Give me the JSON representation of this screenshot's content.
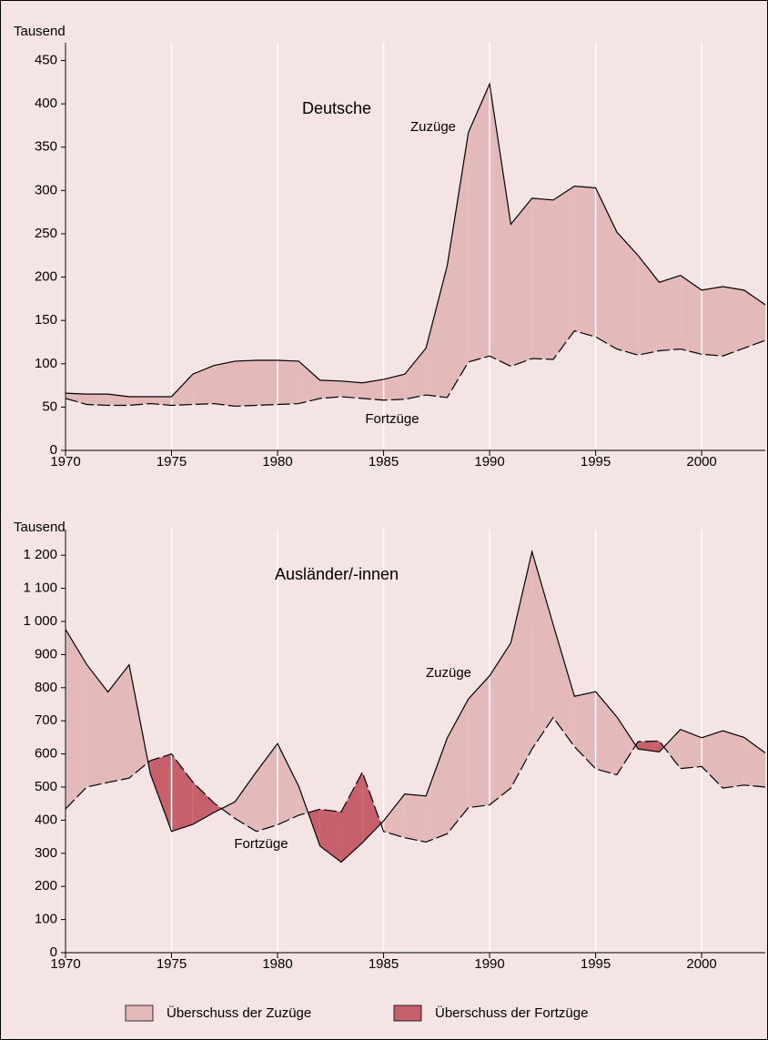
{
  "chart_data": [
    {
      "type": "area_diff",
      "title": "Deutsche",
      "ylabel": "Tausend",
      "x": [
        1970,
        1971,
        1972,
        1973,
        1974,
        1975,
        1976,
        1977,
        1978,
        1979,
        1980,
        1981,
        1982,
        1983,
        1984,
        1985,
        1986,
        1987,
        1988,
        1989,
        1990,
        1991,
        1992,
        1993,
        1994,
        1995,
        1996,
        1997,
        1998,
        1999,
        2000,
        2001,
        2002,
        2003
      ],
      "series": [
        {
          "name": "Zuzüge",
          "color": "#000000",
          "dash": false,
          "values": [
            66,
            65,
            65,
            62,
            62,
            62,
            88,
            98,
            103,
            104,
            104,
            103,
            81,
            80,
            78,
            82,
            88,
            118,
            213,
            367,
            423,
            261,
            291,
            289,
            305,
            303,
            252,
            225,
            194,
            202,
            185,
            189,
            185,
            168
          ]
        },
        {
          "name": "Fortzüge",
          "color": "#000000",
          "dash": true,
          "values": [
            60,
            53,
            52,
            52,
            54,
            52,
            53,
            54,
            51,
            52,
            53,
            54,
            60,
            62,
            60,
            58,
            59,
            64,
            61,
            102,
            109,
            97,
            106,
            105,
            138,
            131,
            117,
            110,
            115,
            117,
            111,
            109,
            118,
            127
          ]
        }
      ],
      "xlim": [
        1970,
        2003
      ],
      "xticks": [
        1970,
        1975,
        1980,
        1985,
        1990,
        1995,
        2000
      ],
      "ylim": [
        0,
        460
      ],
      "yticks": [
        0,
        50,
        100,
        150,
        200,
        250,
        300,
        350,
        400,
        450
      ],
      "grid": true
    },
    {
      "type": "area_diff",
      "title": "Ausländer/-innen",
      "ylabel": "Tausend",
      "x": [
        1970,
        1971,
        1972,
        1973,
        1974,
        1975,
        1976,
        1977,
        1978,
        1979,
        1980,
        1981,
        1982,
        1983,
        1984,
        1985,
        1986,
        1987,
        1988,
        1989,
        1990,
        1991,
        1992,
        1993,
        1994,
        1995,
        1996,
        1997,
        1998,
        1999,
        2000,
        2001,
        2002,
        2003
      ],
      "series": [
        {
          "name": "Zuzüge",
          "color": "#000000",
          "dash": false,
          "values": [
            976,
            870,
            787,
            869,
            540,
            366,
            387,
            423,
            456,
            546,
            631,
            502,
            322,
            273,
            332,
            398,
            479,
            473,
            648,
            766,
            836,
            935,
            1211,
            990,
            774,
            788,
            712,
            615,
            606,
            674,
            649,
            670,
            650,
            603
          ]
        },
        {
          "name": "Fortzüge",
          "color": "#000000",
          "dash": true,
          "values": [
            434,
            500,
            514,
            527,
            580,
            600,
            515,
            452,
            405,
            366,
            386,
            415,
            433,
            425,
            545,
            366,
            347,
            334,
            359,
            438,
            446,
            497,
            615,
            710,
            622,
            555,
            537,
            637,
            639,
            556,
            562,
            497,
            506,
            500
          ]
        }
      ],
      "xlim": [
        1970,
        2003
      ],
      "xticks": [
        1970,
        1975,
        1980,
        1985,
        1990,
        1995,
        2000
      ],
      "ylim": [
        0,
        1250
      ],
      "yticks": [
        0,
        100,
        200,
        300,
        400,
        500,
        600,
        700,
        800,
        900,
        {
          "value": 1000,
          "label": "1 000"
        },
        {
          "value": 1100,
          "label": "1 100"
        },
        {
          "value": 1200,
          "label": "1 200"
        }
      ],
      "grid": true
    }
  ],
  "legend": [
    {
      "label": "Überschuss der Zuzüge",
      "color": "#e4b9b9"
    },
    {
      "label": "Überschuss der Fortzüge",
      "color": "#c6616b"
    }
  ]
}
